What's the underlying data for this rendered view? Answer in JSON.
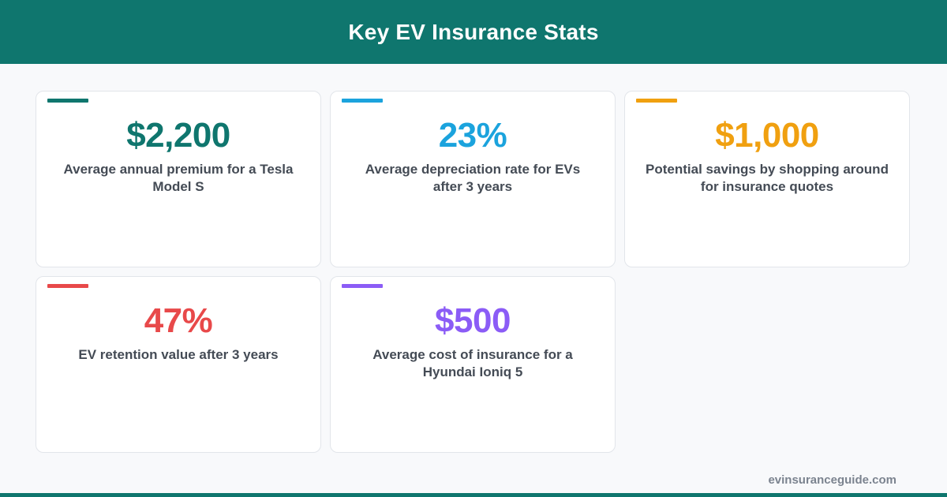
{
  "header": {
    "title": "Key EV Insurance Stats",
    "color": "#0f766e"
  },
  "stats": [
    {
      "value": "$2,200",
      "label": "Average annual premium for a Tesla Model S",
      "color": "#0f766e"
    },
    {
      "value": "23%",
      "label": "Average depreciation rate for EVs after 3 years",
      "color": "#1ba3dd"
    },
    {
      "value": "$1,000",
      "label": "Potential savings by shopping around for insurance quotes",
      "color": "#f0a010"
    },
    {
      "value": "47%",
      "label": "EV retention value after 3 years",
      "color": "#e8494a"
    },
    {
      "value": "$500",
      "label": "Average cost of insurance for a Hyundai Ioniq 5",
      "color": "#8b5cf6"
    }
  ],
  "footer": {
    "url": "evinsuranceguide.com"
  }
}
